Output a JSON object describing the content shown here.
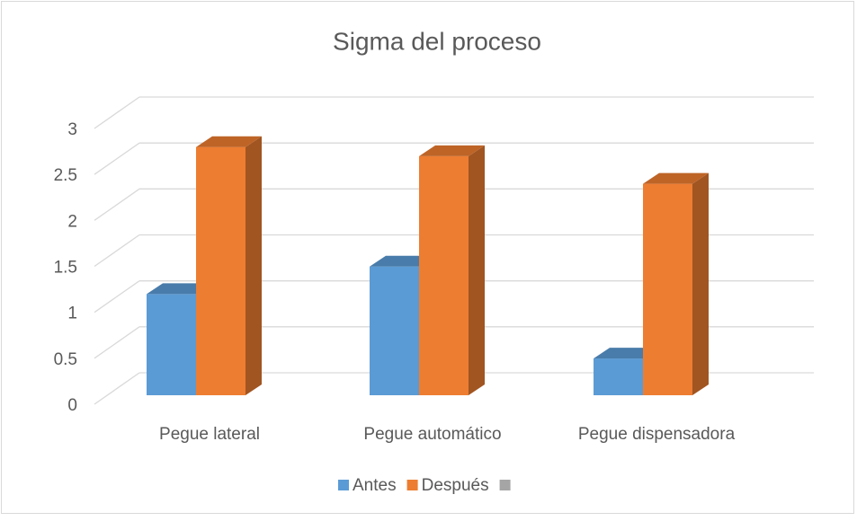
{
  "chart_data": {
    "type": "bar3d",
    "title": "Sigma del proceso",
    "categories": [
      "Pegue lateral",
      "Pegue automático",
      "Pegue dispensadora"
    ],
    "series": [
      {
        "name": "Antes",
        "color": "#5b9bd5",
        "values": [
          1.1,
          1.4,
          0.4
        ]
      },
      {
        "name": "Después",
        "color": "#ed7d31",
        "values": [
          2.7,
          2.6,
          2.3
        ]
      },
      {
        "color": "#a5a5a5",
        "values": [
          null,
          null,
          null
        ]
      }
    ],
    "ylim": [
      0,
      3
    ],
    "yticks": [
      0,
      {
        "value": 0.5,
        "label": "0.5"
      },
      1,
      {
        "value": 1.5,
        "label": "1.5"
      },
      2,
      {
        "value": 2.5,
        "label": "2.5"
      },
      3
    ],
    "grid": true,
    "legend": "bottom"
  }
}
